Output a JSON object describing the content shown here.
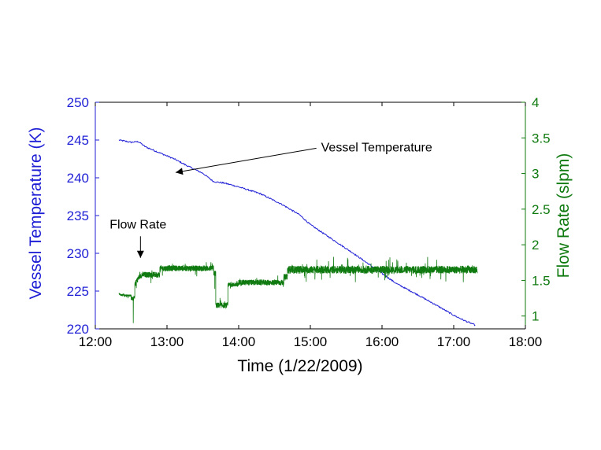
{
  "chart_data": {
    "type": "line",
    "xlabel": "Time (1/22/2009)",
    "ylabel_left": "Vessel Temperature (K)",
    "ylabel_right": "Flow Rate (slpm)",
    "x_unit": "hours",
    "xlim": [
      12,
      18
    ],
    "ylim_left": [
      220,
      250
    ],
    "ylim_right": [
      0.82,
      4
    ],
    "x_ticks": [
      12,
      13,
      14,
      15,
      16,
      17,
      18
    ],
    "x_tick_labels": [
      "12:00",
      "13:00",
      "14:00",
      "15:00",
      "16:00",
      "17:00",
      "18:00"
    ],
    "y_left_ticks": [
      220,
      225,
      230,
      235,
      240,
      245,
      250
    ],
    "y_left_tick_labels": [
      "220",
      "225",
      "230",
      "235",
      "240",
      "245",
      "250"
    ],
    "y_right_ticks": [
      1,
      1.5,
      2,
      2.5,
      3,
      3.5,
      4
    ],
    "y_right_tick_labels": [
      "1",
      "1.5",
      "2",
      "2.5",
      "3",
      "3.5",
      "4"
    ],
    "grid": false,
    "colors": {
      "temperature": "#1f1fd6",
      "flow": "#0f7a0f",
      "axis": "#000000"
    },
    "series": [
      {
        "name": "Vessel Temperature",
        "axis": "left",
        "points": [
          [
            12.33,
            245.0
          ],
          [
            12.5,
            244.7
          ],
          [
            12.6,
            244.8
          ],
          [
            12.7,
            244.1
          ],
          [
            12.9,
            243.3
          ],
          [
            13.1,
            242.5
          ],
          [
            13.3,
            241.5
          ],
          [
            13.5,
            240.6
          ],
          [
            13.65,
            239.5
          ],
          [
            13.8,
            239.3
          ],
          [
            14.0,
            238.8
          ],
          [
            14.3,
            237.9
          ],
          [
            14.6,
            236.5
          ],
          [
            14.85,
            235.1
          ],
          [
            15.0,
            233.8
          ],
          [
            15.3,
            231.9
          ],
          [
            15.6,
            230.0
          ],
          [
            15.9,
            228.0
          ],
          [
            16.2,
            226.0
          ],
          [
            16.5,
            224.5
          ],
          [
            16.8,
            222.9
          ],
          [
            17.0,
            221.8
          ],
          [
            17.15,
            221.1
          ],
          [
            17.3,
            220.5
          ]
        ]
      },
      {
        "name": "Flow Rate",
        "axis": "right",
        "segments": [
          {
            "x": [
              12.33,
              12.5
            ],
            "base": 1.29,
            "noise": 0.015,
            "start": 1.31
          },
          {
            "x": [
              12.5,
              12.55
            ],
            "base": 1.25,
            "noise": 0.03,
            "dip": 0.9
          },
          {
            "x": [
              12.55,
              12.9
            ],
            "base": 1.58,
            "noise": 0.04,
            "start": 1.43
          },
          {
            "x": [
              12.9,
              13.65
            ],
            "base": 1.67,
            "noise": 0.04
          },
          {
            "x": [
              13.65,
              13.68
            ],
            "base": 1.6,
            "noise": 0.04,
            "dip": 1.38
          },
          {
            "x": [
              13.68,
              13.85
            ],
            "base": 1.15,
            "noise": 0.04
          },
          {
            "x": [
              13.85,
              14.0
            ],
            "base": 1.44,
            "noise": 0.03
          },
          {
            "x": [
              14.0,
              14.63
            ],
            "base": 1.47,
            "noise": 0.04
          },
          {
            "x": [
              14.63,
              14.68
            ],
            "base": 1.55,
            "noise": 0.04
          },
          {
            "x": [
              14.68,
              17.33
            ],
            "base": 1.65,
            "noise": 0.055
          }
        ]
      }
    ],
    "annotations": [
      {
        "text": "Vessel Temperature",
        "text_at": [
          15.15,
          243.5
        ],
        "arrow_to": [
          13.12,
          240.7
        ]
      },
      {
        "text": "Flow Rate",
        "text_at": [
          12.2,
          233.3
        ],
        "arrow_to": [
          12.63,
          229.4
        ]
      }
    ]
  }
}
